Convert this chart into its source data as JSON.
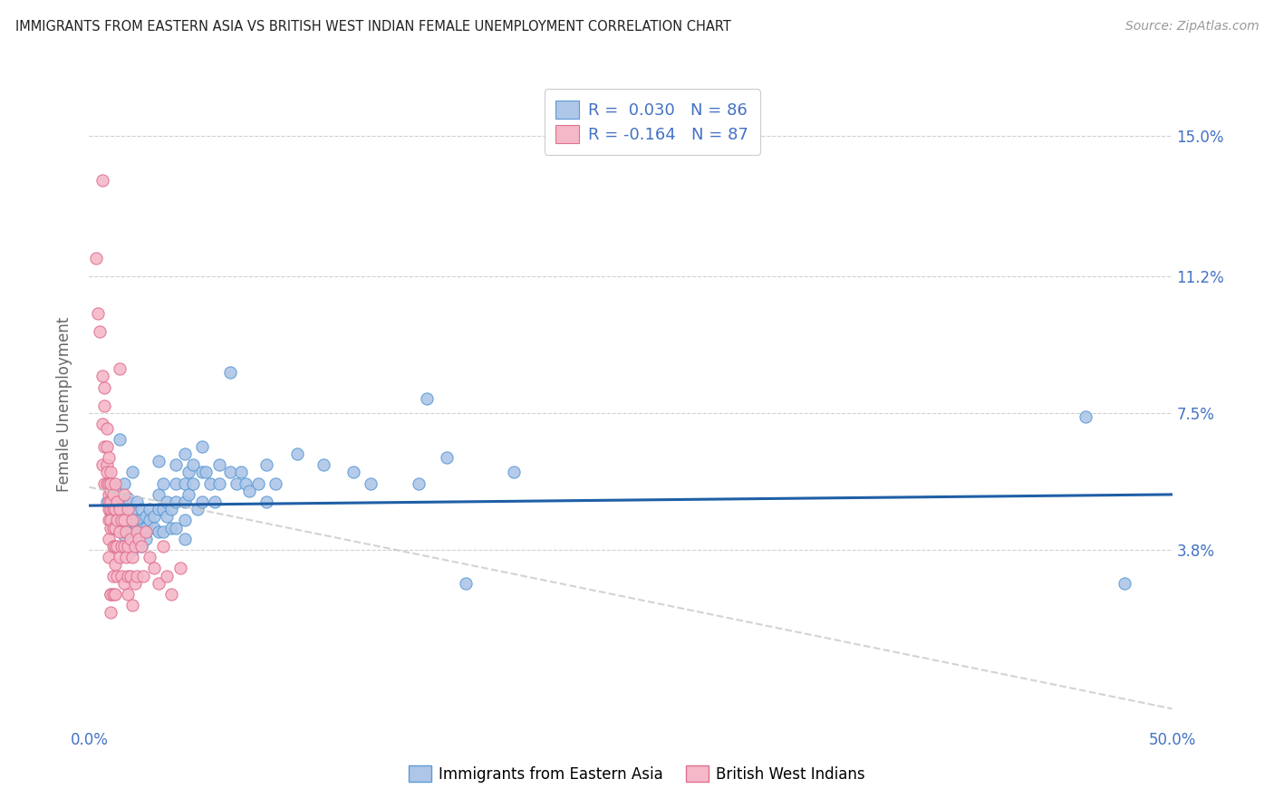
{
  "title": "IMMIGRANTS FROM EASTERN ASIA VS BRITISH WEST INDIAN FEMALE UNEMPLOYMENT CORRELATION CHART",
  "source": "Source: ZipAtlas.com",
  "ylabel": "Female Unemployment",
  "yticks": [
    0.038,
    0.075,
    0.112,
    0.15
  ],
  "ytick_labels": [
    "3.8%",
    "7.5%",
    "11.2%",
    "15.0%"
  ],
  "xlim": [
    0.0,
    0.5
  ],
  "ylim": [
    -0.01,
    0.165
  ],
  "blue_R": 0.03,
  "blue_N": 86,
  "pink_R": -0.164,
  "pink_N": 87,
  "blue_color": "#aec6e8",
  "pink_color": "#f5b8c8",
  "blue_edge_color": "#5b9bd5",
  "pink_edge_color": "#e07090",
  "blue_line_color": "#1f5fa6",
  "pink_line_color": "#c8c8c8",
  "title_color": "#222222",
  "axis_label_color": "#4472c4",
  "grid_color": "#d0d0d0",
  "blue_scatter": [
    [
      0.008,
      0.051
    ],
    [
      0.01,
      0.048
    ],
    [
      0.012,
      0.05
    ],
    [
      0.012,
      0.055
    ],
    [
      0.014,
      0.068
    ],
    [
      0.015,
      0.044
    ],
    [
      0.015,
      0.05
    ],
    [
      0.016,
      0.056
    ],
    [
      0.016,
      0.042
    ],
    [
      0.017,
      0.043
    ],
    [
      0.018,
      0.048
    ],
    [
      0.018,
      0.052
    ],
    [
      0.02,
      0.059
    ],
    [
      0.02,
      0.046
    ],
    [
      0.02,
      0.049
    ],
    [
      0.02,
      0.043
    ],
    [
      0.02,
      0.038
    ],
    [
      0.022,
      0.051
    ],
    [
      0.022,
      0.046
    ],
    [
      0.022,
      0.044
    ],
    [
      0.024,
      0.049
    ],
    [
      0.024,
      0.043
    ],
    [
      0.024,
      0.046
    ],
    [
      0.024,
      0.039
    ],
    [
      0.025,
      0.044
    ],
    [
      0.026,
      0.047
    ],
    [
      0.026,
      0.044
    ],
    [
      0.026,
      0.041
    ],
    [
      0.028,
      0.049
    ],
    [
      0.028,
      0.046
    ],
    [
      0.03,
      0.047
    ],
    [
      0.03,
      0.044
    ],
    [
      0.032,
      0.062
    ],
    [
      0.032,
      0.053
    ],
    [
      0.032,
      0.049
    ],
    [
      0.032,
      0.043
    ],
    [
      0.034,
      0.056
    ],
    [
      0.034,
      0.049
    ],
    [
      0.034,
      0.043
    ],
    [
      0.036,
      0.051
    ],
    [
      0.036,
      0.047
    ],
    [
      0.038,
      0.049
    ],
    [
      0.038,
      0.044
    ],
    [
      0.04,
      0.061
    ],
    [
      0.04,
      0.056
    ],
    [
      0.04,
      0.051
    ],
    [
      0.04,
      0.044
    ],
    [
      0.044,
      0.064
    ],
    [
      0.044,
      0.056
    ],
    [
      0.044,
      0.051
    ],
    [
      0.044,
      0.046
    ],
    [
      0.044,
      0.041
    ],
    [
      0.046,
      0.059
    ],
    [
      0.046,
      0.053
    ],
    [
      0.048,
      0.061
    ],
    [
      0.048,
      0.056
    ],
    [
      0.05,
      0.049
    ],
    [
      0.052,
      0.066
    ],
    [
      0.052,
      0.059
    ],
    [
      0.052,
      0.051
    ],
    [
      0.054,
      0.059
    ],
    [
      0.056,
      0.056
    ],
    [
      0.058,
      0.051
    ],
    [
      0.06,
      0.061
    ],
    [
      0.06,
      0.056
    ],
    [
      0.065,
      0.086
    ],
    [
      0.065,
      0.059
    ],
    [
      0.068,
      0.056
    ],
    [
      0.07,
      0.059
    ],
    [
      0.072,
      0.056
    ],
    [
      0.074,
      0.054
    ],
    [
      0.078,
      0.056
    ],
    [
      0.082,
      0.061
    ],
    [
      0.082,
      0.051
    ],
    [
      0.086,
      0.056
    ],
    [
      0.096,
      0.064
    ],
    [
      0.108,
      0.061
    ],
    [
      0.122,
      0.059
    ],
    [
      0.13,
      0.056
    ],
    [
      0.152,
      0.056
    ],
    [
      0.156,
      0.079
    ],
    [
      0.165,
      0.063
    ],
    [
      0.174,
      0.029
    ],
    [
      0.196,
      0.059
    ],
    [
      0.46,
      0.074
    ],
    [
      0.478,
      0.029
    ]
  ],
  "pink_scatter": [
    [
      0.003,
      0.117
    ],
    [
      0.004,
      0.102
    ],
    [
      0.005,
      0.097
    ],
    [
      0.006,
      0.085
    ],
    [
      0.006,
      0.138
    ],
    [
      0.006,
      0.061
    ],
    [
      0.006,
      0.072
    ],
    [
      0.007,
      0.077
    ],
    [
      0.007,
      0.056
    ],
    [
      0.007,
      0.082
    ],
    [
      0.007,
      0.066
    ],
    [
      0.008,
      0.056
    ],
    [
      0.008,
      0.071
    ],
    [
      0.008,
      0.061
    ],
    [
      0.008,
      0.066
    ],
    [
      0.008,
      0.059
    ],
    [
      0.009,
      0.053
    ],
    [
      0.009,
      0.049
    ],
    [
      0.009,
      0.063
    ],
    [
      0.009,
      0.056
    ],
    [
      0.009,
      0.051
    ],
    [
      0.009,
      0.046
    ],
    [
      0.009,
      0.041
    ],
    [
      0.009,
      0.036
    ],
    [
      0.01,
      0.059
    ],
    [
      0.01,
      0.054
    ],
    [
      0.01,
      0.049
    ],
    [
      0.01,
      0.044
    ],
    [
      0.01,
      0.026
    ],
    [
      0.01,
      0.021
    ],
    [
      0.01,
      0.056
    ],
    [
      0.01,
      0.051
    ],
    [
      0.01,
      0.046
    ],
    [
      0.01,
      0.026
    ],
    [
      0.011,
      0.053
    ],
    [
      0.011,
      0.049
    ],
    [
      0.011,
      0.044
    ],
    [
      0.011,
      0.039
    ],
    [
      0.011,
      0.031
    ],
    [
      0.011,
      0.026
    ],
    [
      0.012,
      0.056
    ],
    [
      0.012,
      0.049
    ],
    [
      0.012,
      0.044
    ],
    [
      0.012,
      0.039
    ],
    [
      0.012,
      0.034
    ],
    [
      0.012,
      0.026
    ],
    [
      0.013,
      0.051
    ],
    [
      0.013,
      0.046
    ],
    [
      0.013,
      0.039
    ],
    [
      0.013,
      0.031
    ],
    [
      0.014,
      0.087
    ],
    [
      0.014,
      0.049
    ],
    [
      0.014,
      0.043
    ],
    [
      0.014,
      0.036
    ],
    [
      0.015,
      0.046
    ],
    [
      0.015,
      0.039
    ],
    [
      0.015,
      0.031
    ],
    [
      0.016,
      0.053
    ],
    [
      0.016,
      0.046
    ],
    [
      0.016,
      0.039
    ],
    [
      0.016,
      0.029
    ],
    [
      0.017,
      0.043
    ],
    [
      0.017,
      0.036
    ],
    [
      0.018,
      0.049
    ],
    [
      0.018,
      0.039
    ],
    [
      0.018,
      0.031
    ],
    [
      0.018,
      0.026
    ],
    [
      0.019,
      0.041
    ],
    [
      0.019,
      0.031
    ],
    [
      0.02,
      0.046
    ],
    [
      0.02,
      0.036
    ],
    [
      0.02,
      0.023
    ],
    [
      0.021,
      0.039
    ],
    [
      0.021,
      0.029
    ],
    [
      0.022,
      0.043
    ],
    [
      0.022,
      0.031
    ],
    [
      0.023,
      0.041
    ],
    [
      0.024,
      0.039
    ],
    [
      0.025,
      0.031
    ],
    [
      0.026,
      0.043
    ],
    [
      0.028,
      0.036
    ],
    [
      0.03,
      0.033
    ],
    [
      0.032,
      0.029
    ],
    [
      0.034,
      0.039
    ],
    [
      0.036,
      0.031
    ],
    [
      0.038,
      0.026
    ],
    [
      0.042,
      0.033
    ]
  ]
}
